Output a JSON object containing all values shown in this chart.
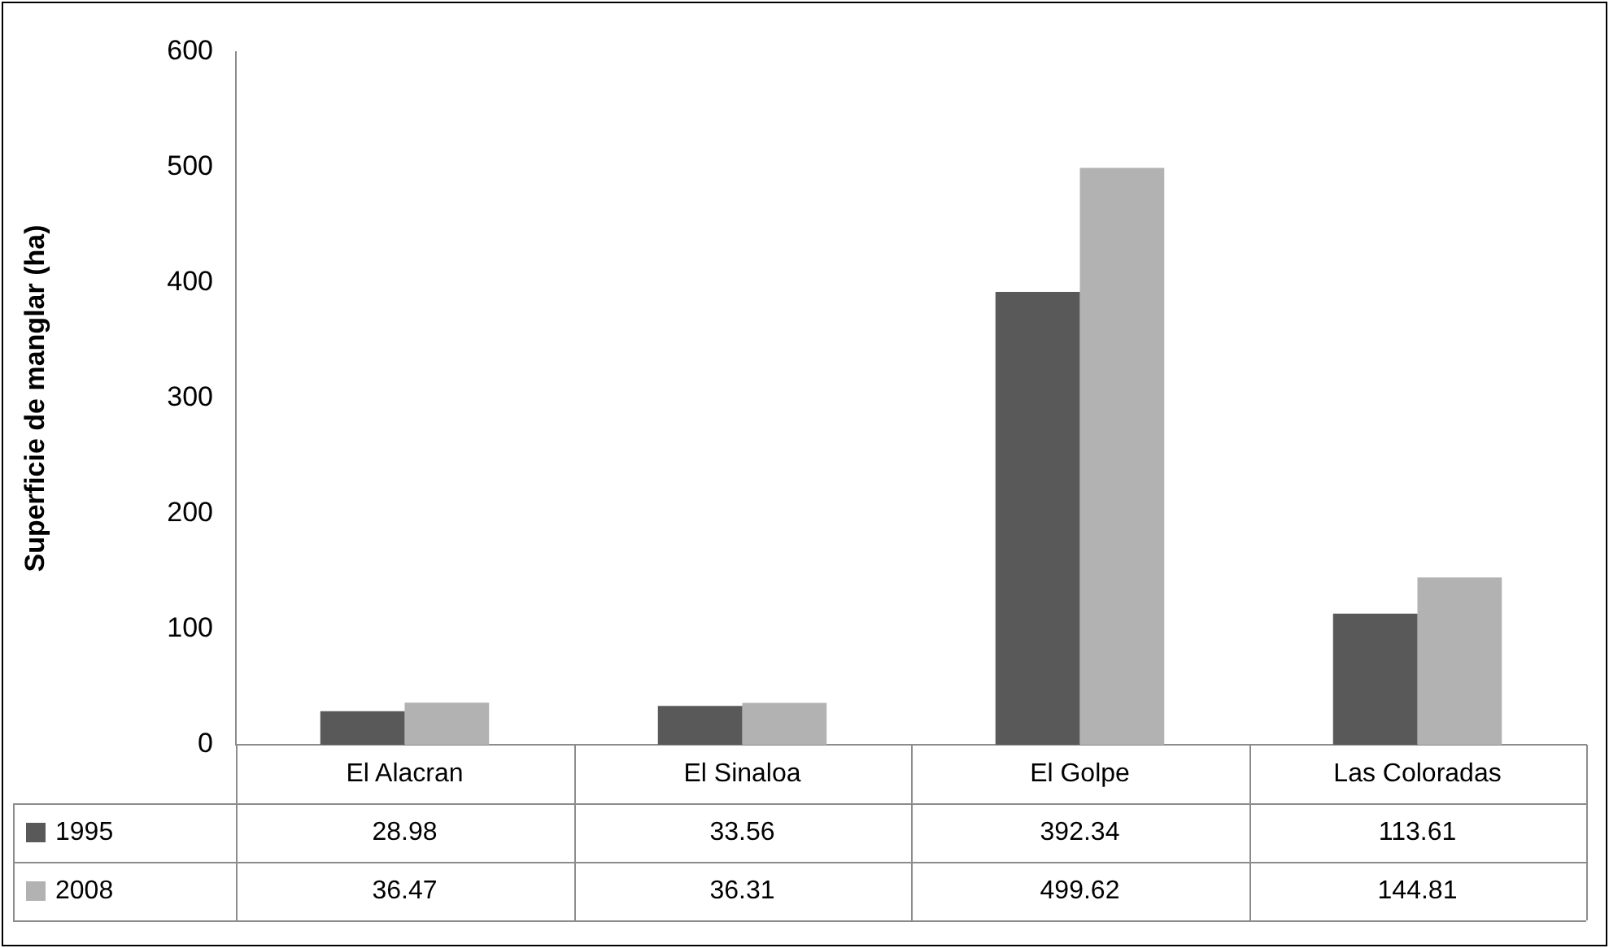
{
  "chart_data": {
    "type": "bar",
    "ylabel": "Superficie de manglar (ha)",
    "categories": [
      "El Alacran",
      "El Sinaloa",
      "El Golpe",
      "Las Coloradas"
    ],
    "series": [
      {
        "name": "1995",
        "color": "#595959",
        "values": [
          28.98,
          33.56,
          392.34,
          113.61
        ]
      },
      {
        "name": "2008",
        "color": "#b2b2b2",
        "values": [
          36.47,
          36.31,
          499.62,
          144.81
        ]
      }
    ],
    "ylim": [
      0,
      600
    ],
    "yticks": [
      0,
      100,
      200,
      300,
      400,
      500,
      600
    ],
    "grid": false,
    "legend": "bottom",
    "data_labels": true
  }
}
